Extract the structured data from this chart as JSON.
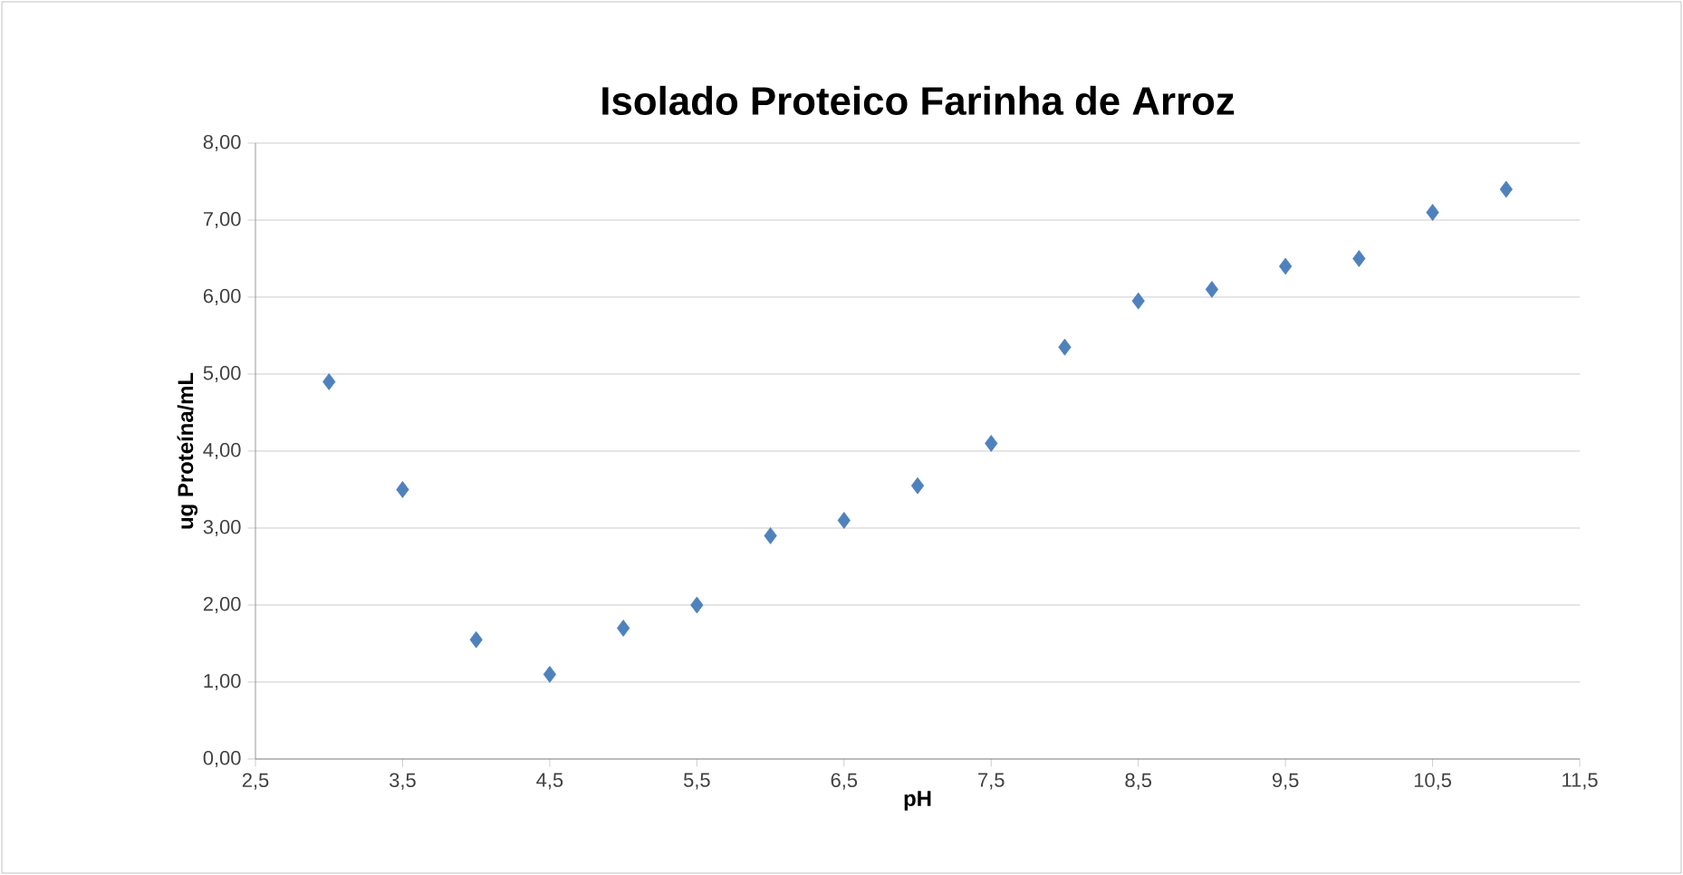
{
  "chart_data": {
    "type": "scatter",
    "title": "Isolado Proteico Farinha de Arroz",
    "xlabel": "pH",
    "ylabel": "ug Proteína/mL",
    "x": [
      3,
      3.5,
      4,
      4.5,
      5,
      5.5,
      6,
      6.5,
      7,
      7.5,
      8,
      8.5,
      9,
      9.5,
      10,
      10.5,
      11
    ],
    "values": [
      4.9,
      3.5,
      1.55,
      1.1,
      1.7,
      2.0,
      2.9,
      3.1,
      3.55,
      4.1,
      5.35,
      5.95,
      6.1,
      6.4,
      6.5,
      7.1,
      7.4
    ],
    "color": "#4f81bd",
    "marker": "diamond",
    "grid": "y",
    "xlim": [
      2.5,
      11.5
    ],
    "xticks": [
      {
        "value": 2.5,
        "label": "2,5"
      },
      {
        "value": 3.5,
        "label": "3,5"
      },
      {
        "value": 4.5,
        "label": "4,5"
      },
      {
        "value": 5.5,
        "label": "5,5"
      },
      {
        "value": 6.5,
        "label": "6,5"
      },
      {
        "value": 7.5,
        "label": "7,5"
      },
      {
        "value": 8.5,
        "label": "8,5"
      },
      {
        "value": 9.5,
        "label": "9,5"
      },
      {
        "value": 10.5,
        "label": "10,5"
      },
      {
        "value": 11.5,
        "label": "11,5"
      }
    ],
    "ylim": [
      0,
      8
    ],
    "yticks": [
      {
        "value": 0,
        "label": "0,00"
      },
      {
        "value": 1,
        "label": "1,00"
      },
      {
        "value": 2,
        "label": "2,00"
      },
      {
        "value": 3,
        "label": "3,00"
      },
      {
        "value": 4,
        "label": "4,00"
      },
      {
        "value": 5,
        "label": "5,00"
      },
      {
        "value": 6,
        "label": "6,00"
      },
      {
        "value": 7,
        "label": "7,00"
      },
      {
        "value": 8,
        "label": "8,00"
      }
    ]
  }
}
